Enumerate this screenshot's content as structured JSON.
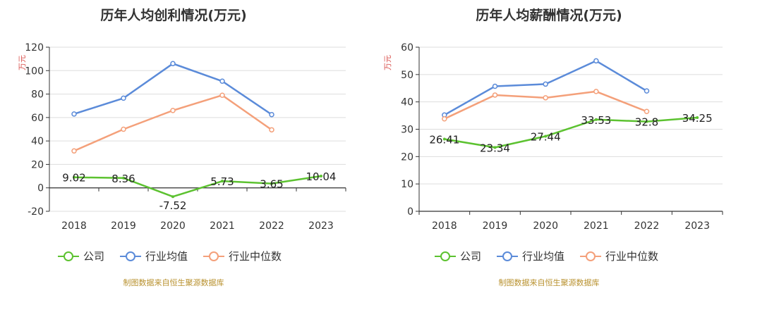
{
  "chart_data": [
    {
      "type": "line",
      "title": "历年人均创利情况(万元)",
      "ylabel": "万元",
      "categories": [
        "2018",
        "2019",
        "2020",
        "2021",
        "2022",
        "2023"
      ],
      "ylim": [
        -20,
        120
      ],
      "yticks": [
        -20,
        0,
        20,
        40,
        60,
        80,
        100,
        120
      ],
      "grid": true,
      "legend_position": "bottom",
      "series": [
        {
          "name": "公司",
          "color": "#5cc230",
          "values": [
            9.02,
            8.36,
            -7.52,
            5.73,
            3.65,
            10.04
          ],
          "labels": [
            "9.02",
            "8.36",
            "-7.52",
            "5.73",
            "3.65",
            "10.04"
          ]
        },
        {
          "name": "行业均值",
          "color": "#5b8bd9",
          "values": [
            63,
            76.5,
            106,
            91,
            62.5,
            null
          ],
          "labels": null
        },
        {
          "name": "行业中位数",
          "color": "#f4a07a",
          "values": [
            31.5,
            50,
            66,
            79,
            49.5,
            null
          ],
          "labels": null
        }
      ],
      "source": "制图数据来自恒生聚源数据库"
    },
    {
      "type": "line",
      "title": "历年人均薪酬情况(万元)",
      "ylabel": "万元",
      "categories": [
        "2018",
        "2019",
        "2020",
        "2021",
        "2022",
        "2023"
      ],
      "ylim": [
        0,
        60
      ],
      "yticks": [
        0,
        10,
        20,
        30,
        40,
        50,
        60
      ],
      "grid": true,
      "legend_position": "bottom",
      "series": [
        {
          "name": "公司",
          "color": "#5cc230",
          "values": [
            26.41,
            23.34,
            27.44,
            33.53,
            32.8,
            34.25
          ],
          "labels": [
            "26.41",
            "23.34",
            "27.44",
            "33.53",
            "32.8",
            "34.25"
          ]
        },
        {
          "name": "行业均值",
          "color": "#5b8bd9",
          "values": [
            35.2,
            45.7,
            46.5,
            55,
            44,
            null
          ],
          "labels": null
        },
        {
          "name": "行业中位数",
          "color": "#f4a07a",
          "values": [
            33.8,
            42.5,
            41.5,
            43.8,
            36.5,
            null
          ],
          "labels": null
        }
      ],
      "source": "制图数据来自恒生聚源数据库"
    }
  ]
}
